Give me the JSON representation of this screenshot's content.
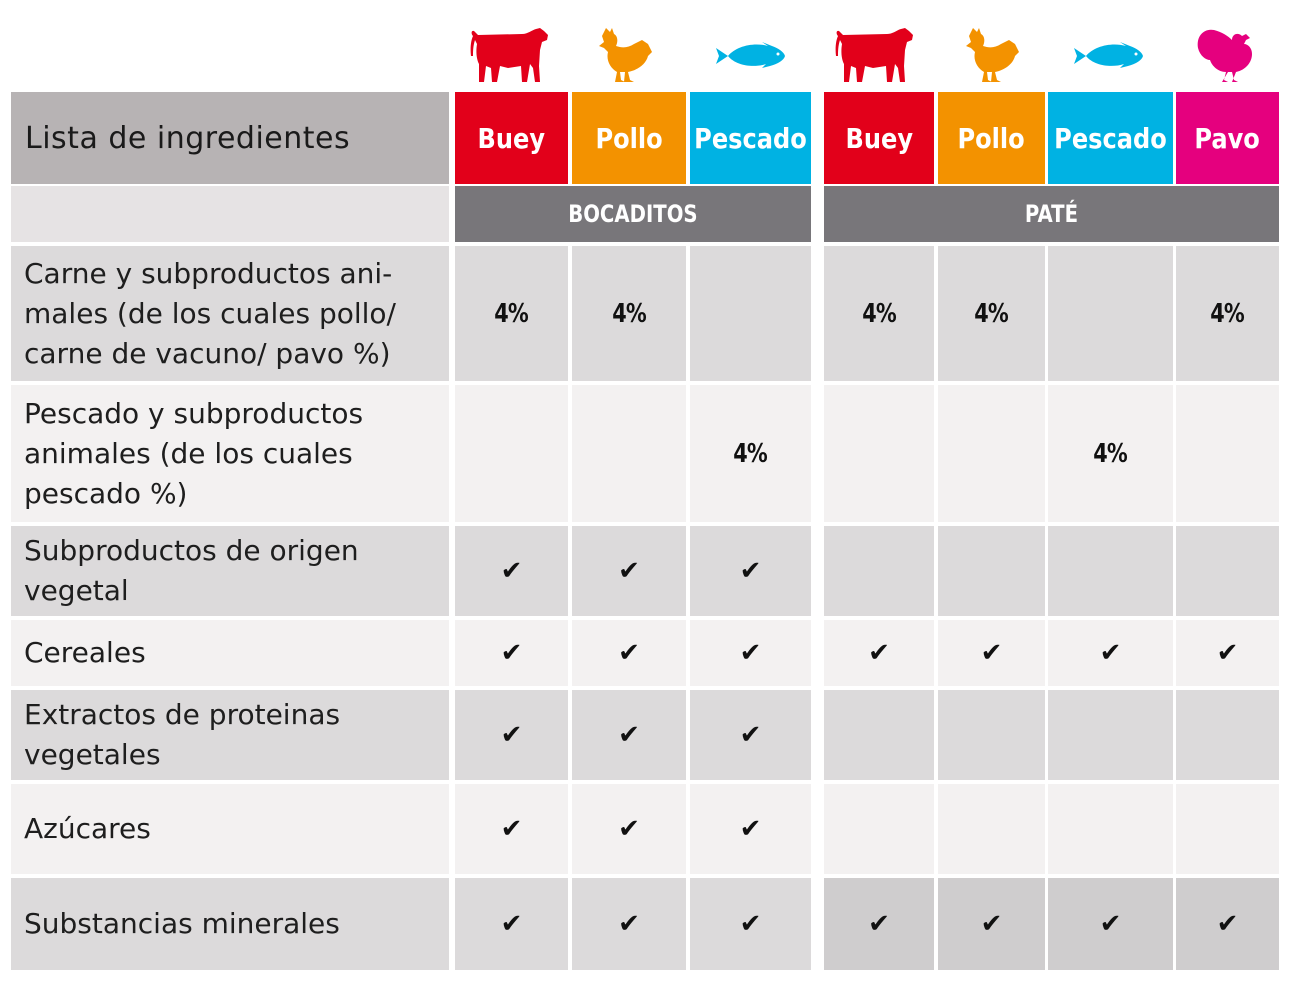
{
  "colors": {
    "buey": "#e2001a",
    "pollo": "#f39200",
    "pescado": "#00b2e3",
    "pavo": "#e5007e",
    "header_grey": "#b7b3b4",
    "group_grey": "#78767a",
    "row_dark": "#dcdadb",
    "row_light": "#f3f1f1",
    "row_mid": "#cfcdce"
  },
  "icons": [
    "cow-icon",
    "chicken-icon",
    "fish-icon",
    "cow-icon",
    "chicken-icon",
    "fish-icon",
    "turkey-icon"
  ],
  "header": {
    "title": "Lista de ingredientes",
    "products": [
      "Buey",
      "Pollo",
      "Pescado",
      "Buey",
      "Pollo",
      "Pescado",
      "Pavo"
    ],
    "groups": [
      "BOCADITOS",
      "PATÉ"
    ]
  },
  "rows": [
    {
      "label": [
        "Carne y subproductos ani-",
        "males (de los cuales pollo/",
        "carne de vacuno/ pavo %)"
      ],
      "values": [
        "4%",
        "4%",
        "",
        "4%",
        "4%",
        "",
        "4%"
      ]
    },
    {
      "label": [
        "Pescado y subproductos",
        "animales (de los cuales",
        "pescado %)"
      ],
      "values": [
        "",
        "",
        "4%",
        "",
        "",
        "4%",
        ""
      ]
    },
    {
      "label": [
        "Subproductos de origen",
        "vegetal"
      ],
      "values": [
        "✔",
        "✔",
        "✔",
        "",
        "",
        "",
        ""
      ]
    },
    {
      "label": [
        "Cereales"
      ],
      "values": [
        "✔",
        "✔",
        "✔",
        "✔",
        "✔",
        "✔",
        "✔"
      ]
    },
    {
      "label": [
        "Extractos de proteinas",
        "vegetales"
      ],
      "values": [
        "✔",
        "✔",
        "✔",
        "",
        "",
        "",
        ""
      ]
    },
    {
      "label": [
        "Azúcares"
      ],
      "values": [
        "✔",
        "✔",
        "✔",
        "",
        "",
        "",
        ""
      ]
    },
    {
      "label": [
        "Substancias minerales"
      ],
      "values": [
        "✔",
        "✔",
        "✔",
        "✔",
        "✔",
        "✔",
        "✔"
      ]
    }
  ]
}
